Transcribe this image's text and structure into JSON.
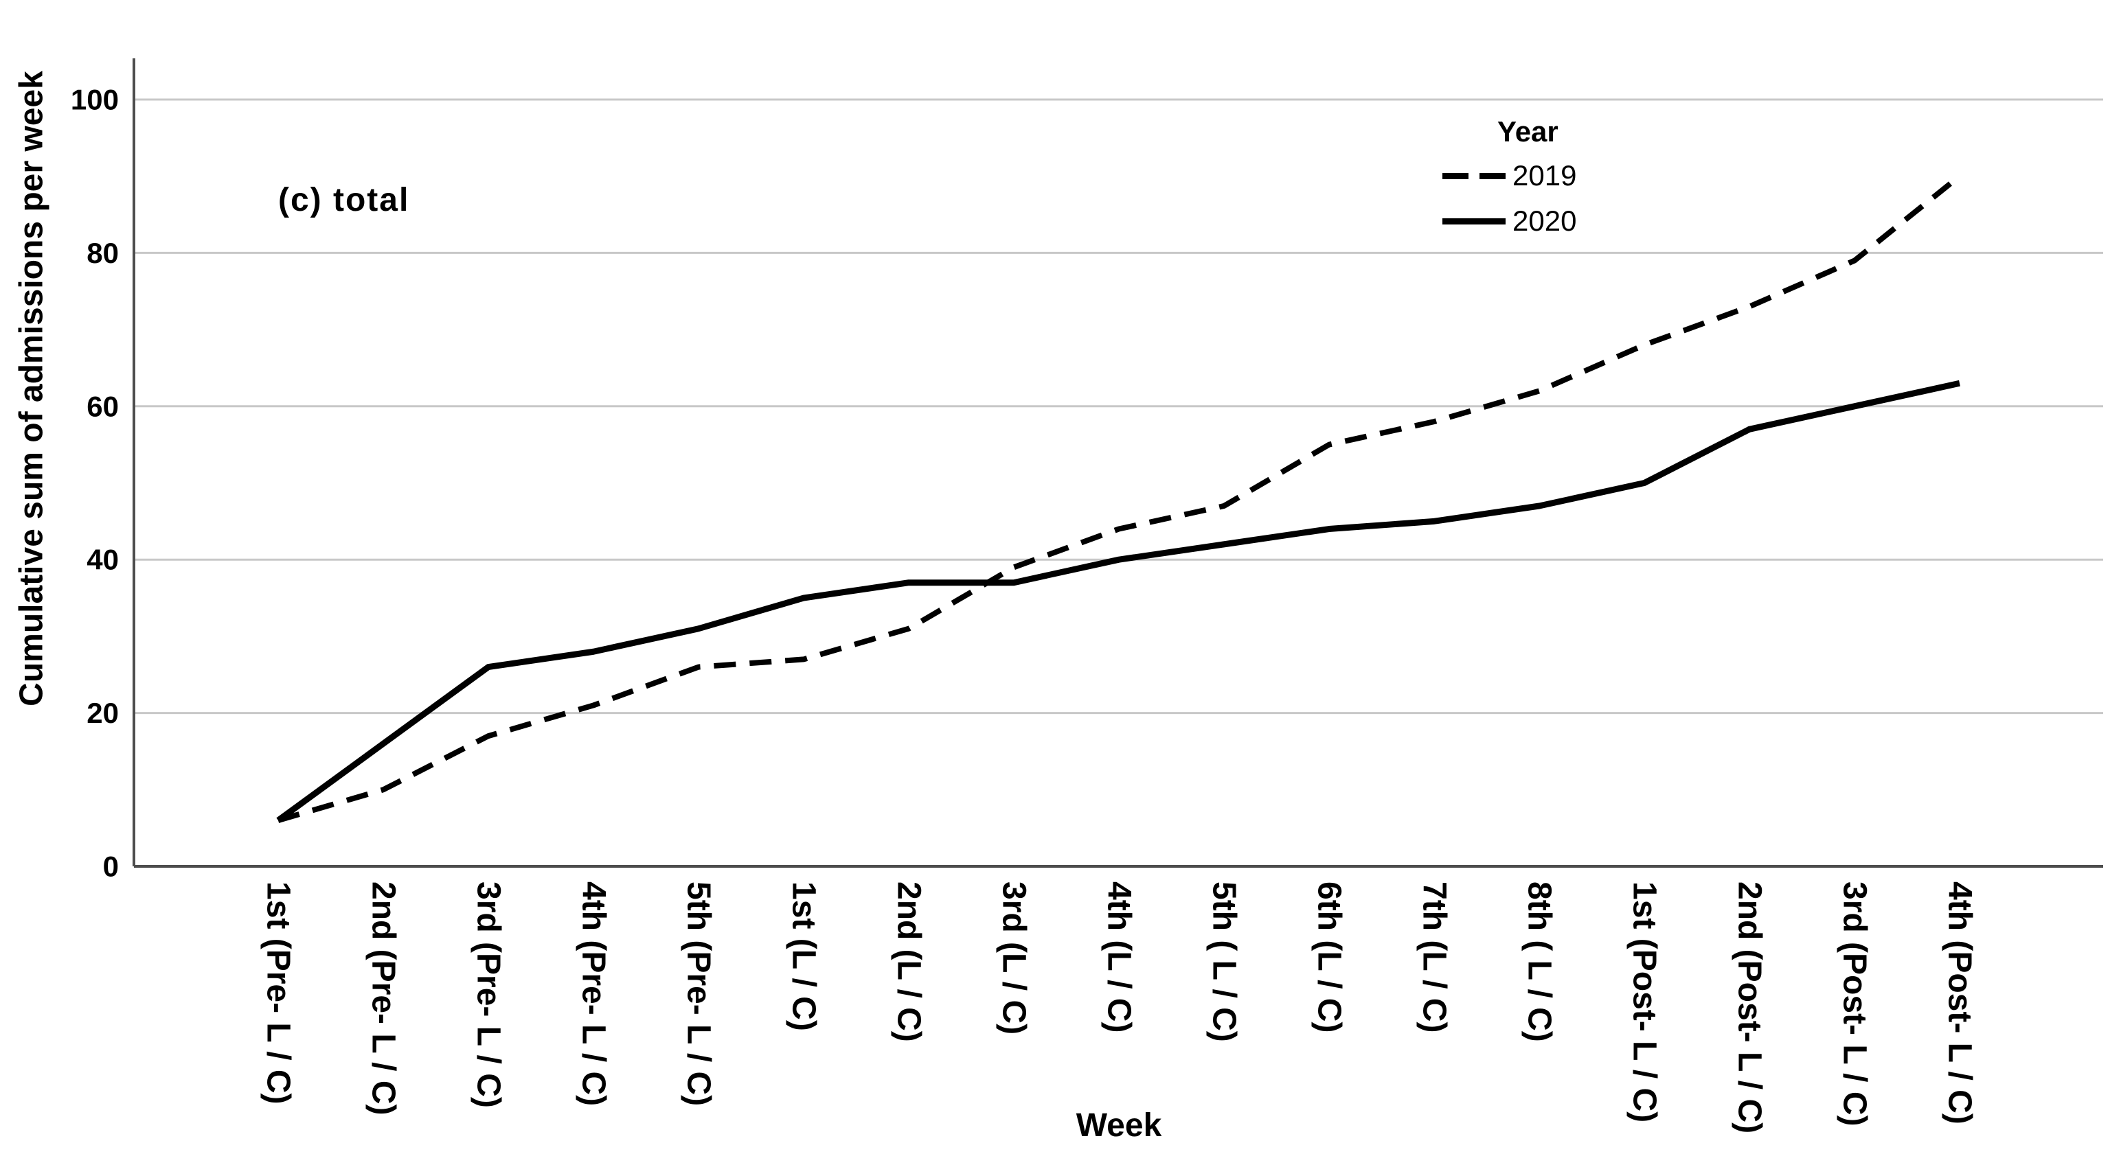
{
  "legend": {
    "title": "Year",
    "entries": [
      {
        "label": "2019",
        "style": "dashed"
      },
      {
        "label": "2020",
        "style": "solid"
      }
    ]
  },
  "chart_data": {
    "type": "line",
    "title": "(c) total",
    "xlabel": "Week",
    "ylabel": "Cumulative sum of admissions per week",
    "ylim": [
      0,
      105
    ],
    "yticks": [
      0,
      20,
      40,
      60,
      80,
      100
    ],
    "grid": "horizontal",
    "legend_position": "inside-top-right",
    "categories": [
      "1st (Pre- L / C)",
      "2nd (Pre- L / C)",
      "3rd (Pre- L / C)",
      "4th (Pre- L / C)",
      "5th (Pre- L / C)",
      "1st (L / C)",
      "2nd (L / C)",
      "3rd (L / C)",
      "4th (L / C)",
      "5th ( L / C)",
      "6th (L / C)",
      "7th (L / C)",
      "8th ( L / C)",
      "1st (Post- L / C)",
      "2nd (Post- L / C)",
      "3rd (Post- L / C)",
      "4th (Post- L / C)"
    ],
    "series": [
      {
        "name": "2019",
        "line_style": "dashed",
        "color": "#000000",
        "values": [
          6,
          10,
          17,
          21,
          26,
          27,
          31,
          39,
          44,
          47,
          55,
          58,
          62,
          68,
          73,
          79,
          90
        ]
      },
      {
        "name": "2020",
        "line_style": "solid",
        "color": "#000000",
        "values": [
          6,
          16,
          26,
          28,
          31,
          35,
          37,
          37,
          40,
          42,
          44,
          45,
          47,
          50,
          57,
          60,
          63
        ]
      }
    ],
    "colors": {
      "grid": "#c8c8c8",
      "axis": "#4d4d4d",
      "series": "#000000"
    }
  }
}
